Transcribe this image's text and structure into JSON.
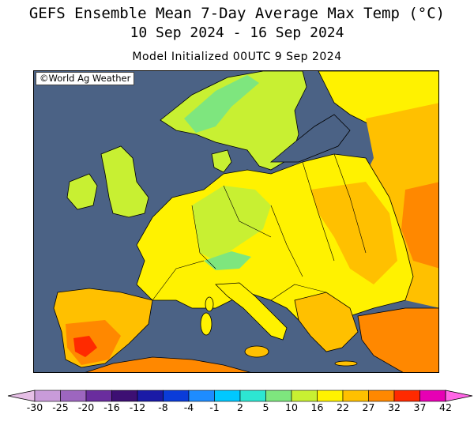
{
  "header": {
    "title_line1": "GEFS Ensemble Mean 7-Day Average Max Temp (°C)",
    "title_line2": "10 Sep 2024 - 16 Sep 2024",
    "subtitle": "Model Initialized 00UTC 9 Sep 2024"
  },
  "map": {
    "credit": "©World Ag Weather",
    "region": "Europe",
    "sea_color": "#4b6285"
  },
  "legend": {
    "ticks": [
      "-30",
      "-25",
      "-20",
      "-16",
      "-12",
      "-8",
      "-4",
      "-1",
      "2",
      "5",
      "10",
      "16",
      "22",
      "27",
      "32",
      "37",
      "42"
    ],
    "colors": [
      "#e6bfe6",
      "#c99bd9",
      "#9d66bf",
      "#6a2d9e",
      "#3d0f73",
      "#1a1aa6",
      "#0a3cd9",
      "#1e8cff",
      "#00c8ff",
      "#2de6d2",
      "#7ee67e",
      "#c8f032",
      "#fff200",
      "#ffc000",
      "#ff8800",
      "#ff2a00",
      "#e600b4",
      "#ff66e6"
    ]
  }
}
